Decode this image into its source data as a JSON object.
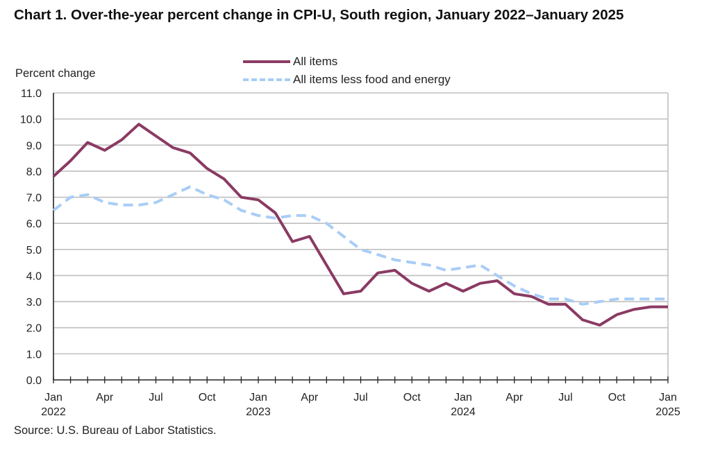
{
  "chart_data": {
    "type": "line",
    "title": "Chart 1. Over-the-year percent change in CPI-U, South region, January 2022–January 2025",
    "ylabel": "Percent change",
    "xlabel": "",
    "ylim": [
      0,
      11
    ],
    "yticks": [
      "0.0",
      "1.0",
      "2.0",
      "3.0",
      "4.0",
      "5.0",
      "6.0",
      "7.0",
      "8.0",
      "9.0",
      "10.0",
      "11.0"
    ],
    "x": [
      "Jan 2022",
      "Feb 2022",
      "Mar 2022",
      "Apr 2022",
      "May 2022",
      "Jun 2022",
      "Jul 2022",
      "Aug 2022",
      "Sep 2022",
      "Oct 2022",
      "Nov 2022",
      "Dec 2022",
      "Jan 2023",
      "Feb 2023",
      "Mar 2023",
      "Apr 2023",
      "May 2023",
      "Jun 2023",
      "Jul 2023",
      "Aug 2023",
      "Sep 2023",
      "Oct 2023",
      "Nov 2023",
      "Dec 2023",
      "Jan 2024",
      "Feb 2024",
      "Mar 2024",
      "Apr 2024",
      "May 2024",
      "Jun 2024",
      "Jul 2024",
      "Aug 2024",
      "Sep 2024",
      "Oct 2024",
      "Nov 2024",
      "Dec 2024",
      "Jan 2025"
    ],
    "xtick_labels": [
      {
        "index": 0,
        "month": "Jan",
        "year": "2022"
      },
      {
        "index": 3,
        "month": "Apr",
        "year": ""
      },
      {
        "index": 6,
        "month": "Jul",
        "year": ""
      },
      {
        "index": 9,
        "month": "Oct",
        "year": ""
      },
      {
        "index": 12,
        "month": "Jan",
        "year": "2023"
      },
      {
        "index": 15,
        "month": "Apr",
        "year": ""
      },
      {
        "index": 18,
        "month": "Jul",
        "year": ""
      },
      {
        "index": 21,
        "month": "Oct",
        "year": ""
      },
      {
        "index": 24,
        "month": "Jan",
        "year": "2024"
      },
      {
        "index": 27,
        "month": "Apr",
        "year": ""
      },
      {
        "index": 30,
        "month": "Jul",
        "year": ""
      },
      {
        "index": 33,
        "month": "Oct",
        "year": ""
      },
      {
        "index": 36,
        "month": "Jan",
        "year": "2025"
      }
    ],
    "grid": true,
    "legend_position": "top-center",
    "series": [
      {
        "name": "All items",
        "style": "solid",
        "color": "#8a3a63",
        "values": [
          7.8,
          8.4,
          9.1,
          8.8,
          9.2,
          9.8,
          9.35,
          8.9,
          8.7,
          8.1,
          7.7,
          7.0,
          6.9,
          6.4,
          5.3,
          5.5,
          4.4,
          3.3,
          3.4,
          4.1,
          4.2,
          3.7,
          3.4,
          3.7,
          3.4,
          3.7,
          3.8,
          3.3,
          3.2,
          2.9,
          2.9,
          2.3,
          2.1,
          2.5,
          2.7,
          2.8,
          2.8
        ]
      },
      {
        "name": "All items less food and energy",
        "style": "dashed",
        "color": "#a8cdf6",
        "values": [
          6.5,
          7.0,
          7.1,
          6.8,
          6.7,
          6.7,
          6.8,
          7.1,
          7.4,
          7.1,
          6.9,
          6.5,
          6.3,
          6.2,
          6.3,
          6.3,
          6.0,
          5.5,
          5.0,
          4.8,
          4.6,
          4.5,
          4.4,
          4.2,
          4.3,
          4.4,
          4.0,
          3.6,
          3.3,
          3.1,
          3.1,
          2.9,
          3.0,
          3.1,
          3.1,
          3.1,
          3.1
        ]
      }
    ],
    "source": "Source: U.S. Bureau of Labor Statistics."
  }
}
